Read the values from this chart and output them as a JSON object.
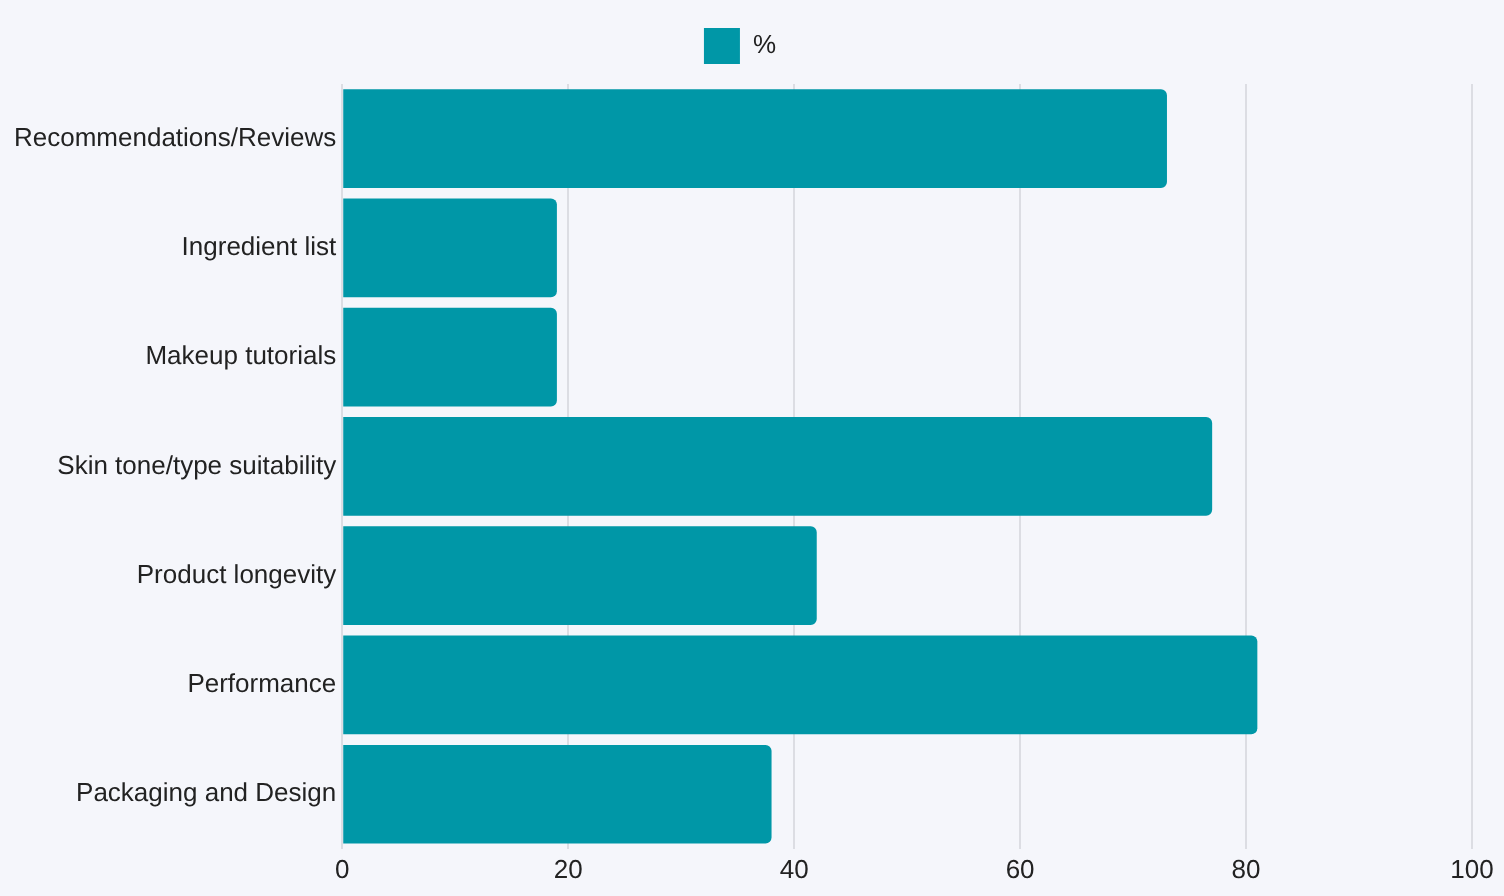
{
  "chart_data": {
    "type": "bar",
    "orientation": "horizontal",
    "categories": [
      "Recommendations/Reviews",
      "Ingredient list",
      "Makeup tutorials",
      "Skin tone/type suitability",
      "Product longevity",
      "Performance",
      "Packaging and Design"
    ],
    "series": [
      {
        "name": "%",
        "color": "#0097a7",
        "values": [
          73,
          19,
          19,
          77,
          42,
          81,
          38
        ]
      }
    ],
    "xlim": [
      0,
      100
    ],
    "xticks": [
      0,
      20,
      40,
      60,
      80,
      100
    ],
    "grid": "x",
    "legend": "top"
  }
}
